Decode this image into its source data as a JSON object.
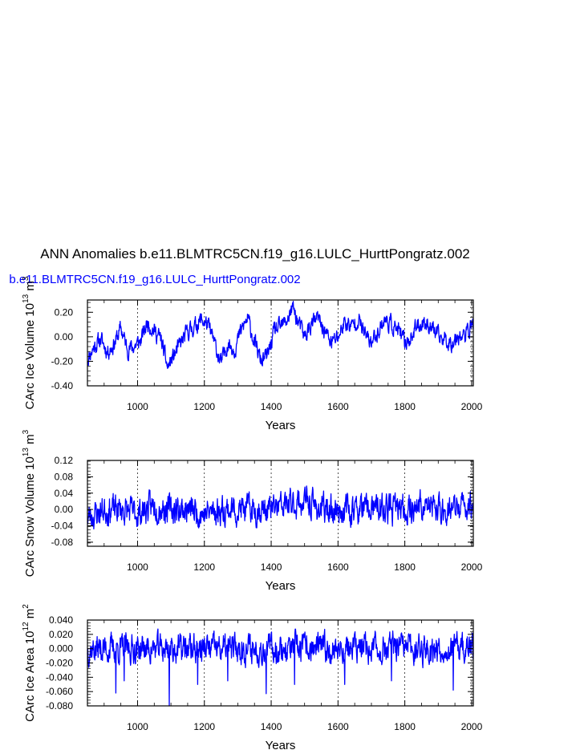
{
  "title": "ANN Anomalies b.e11.BLMTRC5CN.f19_g16.LULC_HurttPongratz.002",
  "legend_label": "b.e11.BLMTRC5CN.f19_g16.LULC_HurttPongratz.002",
  "series_color": "#0000ff",
  "chart_data": [
    {
      "type": "line",
      "id": "ice-volume",
      "xlabel": "Years",
      "ylabel_text": "CArc Ice Volume 10",
      "ylabel_exp": "13",
      "ylabel_unit": " m",
      "ylabel_unit_exp": "3",
      "xlim": [
        850,
        2005
      ],
      "ylim": [
        -0.4,
        0.3
      ],
      "x_ticks": [
        1000,
        1200,
        1400,
        1600,
        1800,
        2000
      ],
      "x_tick_labels": [
        "1000",
        "1200",
        "1400",
        "1600",
        "1800",
        "2000"
      ],
      "y_ticks": [
        -0.4,
        -0.2,
        0.0,
        0.2
      ],
      "y_tick_labels": [
        "-0.40",
        "-0.20",
        "0.00",
        "0.20"
      ],
      "grid": "dashed vertical at major x ticks",
      "anchors": [
        [
          850,
          -0.18
        ],
        [
          870,
          -0.08
        ],
        [
          890,
          -0.02
        ],
        [
          910,
          -0.12
        ],
        [
          930,
          -0.06
        ],
        [
          950,
          0.07
        ],
        [
          970,
          -0.1
        ],
        [
          990,
          -0.08
        ],
        [
          1010,
          -0.03
        ],
        [
          1030,
          0.12
        ],
        [
          1050,
          0.05
        ],
        [
          1070,
          -0.02
        ],
        [
          1090,
          -0.25
        ],
        [
          1110,
          -0.15
        ],
        [
          1130,
          -0.05
        ],
        [
          1150,
          0.04
        ],
        [
          1170,
          0.08
        ],
        [
          1190,
          0.14
        ],
        [
          1210,
          0.1
        ],
        [
          1230,
          -0.05
        ],
        [
          1250,
          -0.22
        ],
        [
          1270,
          -0.05
        ],
        [
          1290,
          -0.1
        ],
        [
          1310,
          0.05
        ],
        [
          1330,
          0.15
        ],
        [
          1350,
          -0.05
        ],
        [
          1370,
          -0.2
        ],
        [
          1390,
          -0.15
        ],
        [
          1410,
          0.05
        ],
        [
          1430,
          0.08
        ],
        [
          1450,
          0.15
        ],
        [
          1465,
          0.24
        ],
        [
          1480,
          0.12
        ],
        [
          1500,
          0.0
        ],
        [
          1520,
          0.1
        ],
        [
          1540,
          0.15
        ],
        [
          1560,
          0.05
        ],
        [
          1580,
          -0.05
        ],
        [
          1600,
          0.0
        ],
        [
          1620,
          0.12
        ],
        [
          1640,
          0.08
        ],
        [
          1660,
          0.15
        ],
        [
          1680,
          0.02
        ],
        [
          1700,
          -0.05
        ],
        [
          1720,
          0.05
        ],
        [
          1740,
          0.14
        ],
        [
          1760,
          0.1
        ],
        [
          1780,
          0.05
        ],
        [
          1800,
          -0.05
        ],
        [
          1820,
          0.0
        ],
        [
          1840,
          0.1
        ],
        [
          1860,
          0.12
        ],
        [
          1880,
          0.08
        ],
        [
          1900,
          0.0
        ],
        [
          1920,
          -0.02
        ],
        [
          1940,
          -0.05
        ],
        [
          1960,
          0.02
        ],
        [
          1980,
          0.0
        ],
        [
          2000,
          0.1
        ]
      ],
      "noise": 0.055,
      "seed": 11
    },
    {
      "type": "line",
      "id": "snow-volume",
      "xlabel": "Years",
      "ylabel_text": "CArc Snow Volume 10",
      "ylabel_exp": "13",
      "ylabel_unit": " m",
      "ylabel_unit_exp": "3",
      "xlim": [
        850,
        2005
      ],
      "ylim": [
        -0.09,
        0.12
      ],
      "x_ticks": [
        1000,
        1200,
        1400,
        1600,
        1800,
        2000
      ],
      "x_tick_labels": [
        "1000",
        "1200",
        "1400",
        "1600",
        "1800",
        "2000"
      ],
      "y_ticks": [
        -0.08,
        -0.04,
        0.0,
        0.04,
        0.08,
        0.12
      ],
      "y_tick_labels": [
        "-0.08",
        "-0.04",
        "0.00",
        "0.04",
        "0.08",
        "0.12"
      ],
      "grid": "dashed vertical at major x ticks",
      "anchors": [
        [
          850,
          -0.02
        ],
        [
          900,
          0.0
        ],
        [
          950,
          0.0
        ],
        [
          1000,
          -0.01
        ],
        [
          1050,
          0.01
        ],
        [
          1100,
          0.0
        ],
        [
          1150,
          0.0
        ],
        [
          1200,
          -0.01
        ],
        [
          1250,
          0.0
        ],
        [
          1300,
          0.0
        ],
        [
          1350,
          0.0
        ],
        [
          1400,
          0.0
        ],
        [
          1450,
          0.01
        ],
        [
          1500,
          0.02
        ],
        [
          1550,
          0.0
        ],
        [
          1600,
          0.0
        ],
        [
          1650,
          0.0
        ],
        [
          1700,
          0.0
        ],
        [
          1750,
          0.0
        ],
        [
          1800,
          0.0
        ],
        [
          1850,
          0.01
        ],
        [
          1900,
          0.0
        ],
        [
          1950,
          0.0
        ],
        [
          2000,
          0.01
        ]
      ],
      "noise": 0.028,
      "seed": 23
    },
    {
      "type": "line",
      "id": "ice-area",
      "xlabel": "Years",
      "ylabel_text": "CArc Ice Area 10",
      "ylabel_exp": "12",
      "ylabel_unit": " m",
      "ylabel_unit_exp": "2",
      "xlim": [
        850,
        2005
      ],
      "ylim": [
        -0.08,
        0.04
      ],
      "x_ticks": [
        1000,
        1200,
        1400,
        1600,
        1800,
        2000
      ],
      "x_tick_labels": [
        "1000",
        "1200",
        "1400",
        "1600",
        "1800",
        "2000"
      ],
      "y_ticks": [
        -0.08,
        -0.06,
        -0.04,
        -0.02,
        0.0,
        0.02,
        0.04
      ],
      "y_tick_labels": [
        "-0.080",
        "-0.060",
        "-0.040",
        "-0.020",
        "0.000",
        "0.020",
        "0.040"
      ],
      "grid": "dashed vertical at major x ticks",
      "anchors": [
        [
          850,
          0.0
        ],
        [
          950,
          0.0
        ],
        [
          1050,
          0.0
        ],
        [
          1150,
          0.0
        ],
        [
          1250,
          0.0
        ],
        [
          1350,
          0.0
        ],
        [
          1450,
          0.0
        ],
        [
          1550,
          0.0
        ],
        [
          1650,
          0.0
        ],
        [
          1750,
          0.0
        ],
        [
          1850,
          0.0
        ],
        [
          1950,
          0.0
        ],
        [
          2000,
          0.0
        ]
      ],
      "noise": 0.016,
      "spikes": [
        [
          935,
          -0.062
        ],
        [
          960,
          -0.045
        ],
        [
          1095,
          -0.08
        ],
        [
          1180,
          -0.05
        ],
        [
          1385,
          -0.063
        ],
        [
          1470,
          -0.05
        ],
        [
          1945,
          -0.058
        ],
        [
          1270,
          -0.045
        ],
        [
          1620,
          -0.05
        ],
        [
          1760,
          -0.045
        ]
      ],
      "seed": 37
    }
  ]
}
